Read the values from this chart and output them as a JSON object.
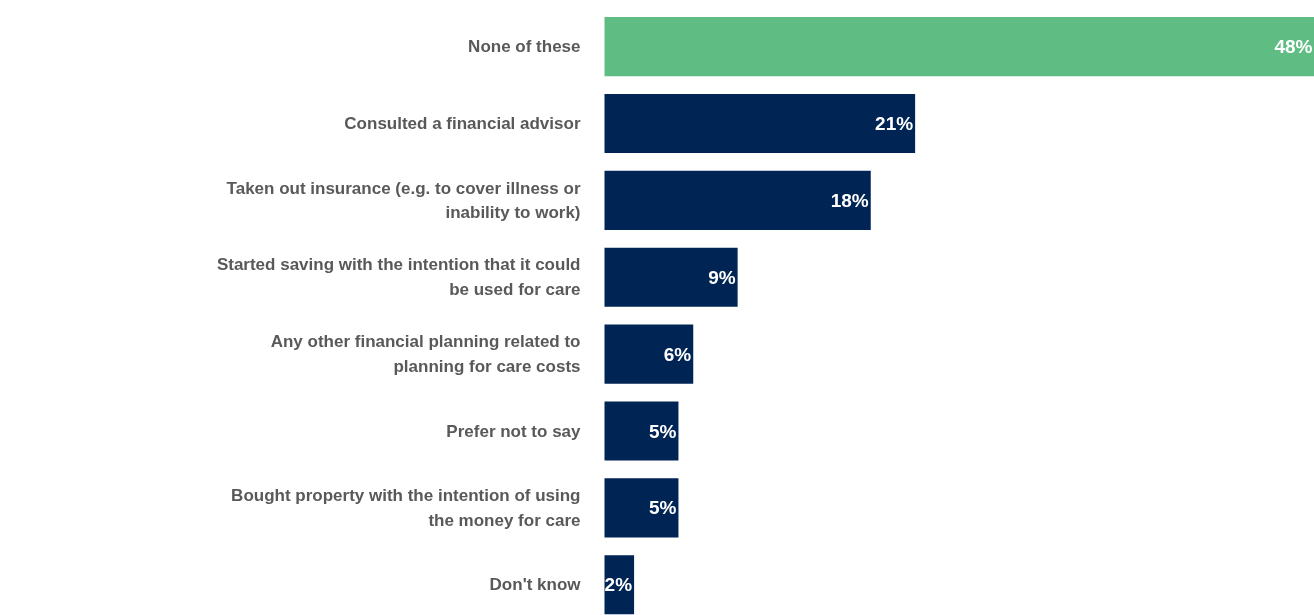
{
  "chart_data": {
    "type": "bar",
    "orientation": "horizontal",
    "value_labels": [
      "48%",
      "21%",
      "18%",
      "9%",
      "6%",
      "5%",
      "5%",
      "2%"
    ],
    "categories": [
      "None of these",
      "Consulted a financial advisor",
      "Taken out insurance (e.g. to cover illness or\ninability to work)",
      "Started saving with the intention that it could\nbe used for care",
      "Any other financial planning related to\nplanning for care costs",
      "Prefer not to say",
      "Bought property with the intention of using\nthe money for care",
      "Don't know"
    ],
    "values": [
      48,
      21,
      18,
      9,
      6,
      5,
      5,
      2
    ],
    "colors": [
      "#5fbd84",
      "#002554",
      "#002554",
      "#002554",
      "#002554",
      "#002554",
      "#002554",
      "#002554"
    ]
  }
}
